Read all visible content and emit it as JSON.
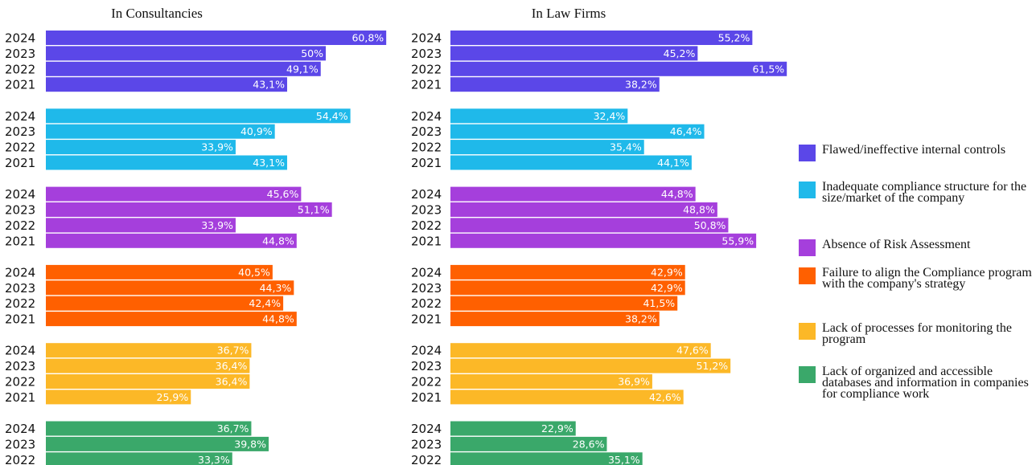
{
  "chart_data": [
    {
      "type": "bar",
      "title": "In Consultancies",
      "categories": [
        "2024",
        "2023",
        "2022",
        "2021"
      ],
      "series": [
        {
          "name": "Flawed/ineffective internal controls",
          "color": "#5b47e8",
          "values": [
            60.8,
            50,
            49.1,
            43.1
          ],
          "value_labels": [
            "60,8%",
            "50%",
            "49,1%",
            "43,1%"
          ]
        },
        {
          "name": "Inadequate compliance structure for the size/market of the company",
          "color": "#1fb9ea",
          "values": [
            54.4,
            40.9,
            33.9,
            43.1
          ],
          "value_labels": [
            "54,4%",
            "40,9%",
            "33,9%",
            "43,1%"
          ]
        },
        {
          "name": "Absence of Risk Assessment",
          "color": "#a53fdc",
          "values": [
            45.6,
            51.1,
            33.9,
            44.8
          ],
          "value_labels": [
            "45,6%",
            "51,1%",
            "33,9%",
            "44,8%"
          ]
        },
        {
          "name": "Failure to align the Compliance program with the company's strategy",
          "color": "#ff6000",
          "values": [
            40.5,
            44.3,
            42.4,
            44.8
          ],
          "value_labels": [
            "40,5%",
            "44,3%",
            "42,4%",
            "44,8%"
          ]
        },
        {
          "name": "Lack of processes for monitoring the program",
          "color": "#fcb827",
          "values": [
            36.7,
            36.4,
            36.4,
            25.9
          ],
          "value_labels": [
            "36,7%",
            "36,4%",
            "36,4%",
            "25,9%"
          ]
        },
        {
          "name": "Lack of organized and accessible databases and information in companies for compliance work",
          "color": "#3aa86a",
          "values": [
            36.7,
            39.8,
            33.3,
            null
          ],
          "value_labels": [
            "36,7%",
            "39,8%",
            "33,3%",
            null
          ]
        }
      ]
    },
    {
      "type": "bar",
      "title": "In Law Firms",
      "categories": [
        "2024",
        "2023",
        "2022",
        "2021"
      ],
      "series": [
        {
          "color": "#5b47e8",
          "values": [
            55.2,
            45.2,
            61.5,
            38.2
          ],
          "value_labels": [
            "55,2%",
            "45,2%",
            "61,5%",
            "38,2%"
          ]
        },
        {
          "color": "#1fb9ea",
          "values": [
            32.4,
            46.4,
            35.4,
            44.1
          ],
          "value_labels": [
            "32,4%",
            "46,4%",
            "35,4%",
            "44,1%"
          ]
        },
        {
          "color": "#a53fdc",
          "values": [
            44.8,
            48.8,
            50.8,
            55.9
          ],
          "value_labels": [
            "44,8%",
            "48,8%",
            "50,8%",
            "55,9%"
          ]
        },
        {
          "color": "#ff6000",
          "values": [
            42.9,
            42.9,
            41.5,
            38.2
          ],
          "value_labels": [
            "42,9%",
            "42,9%",
            "41,5%",
            "38,2%"
          ]
        },
        {
          "color": "#fcb827",
          "values": [
            47.6,
            51.2,
            36.9,
            42.6
          ],
          "value_labels": [
            "47,6%",
            "51,2%",
            "36,9%",
            "42,6%"
          ]
        },
        {
          "color": "#3aa86a",
          "values": [
            22.9,
            28.6,
            35.1,
            null
          ],
          "value_labels": [
            "22,9%",
            "28,6%",
            "35,1%",
            null
          ]
        }
      ]
    }
  ]
}
